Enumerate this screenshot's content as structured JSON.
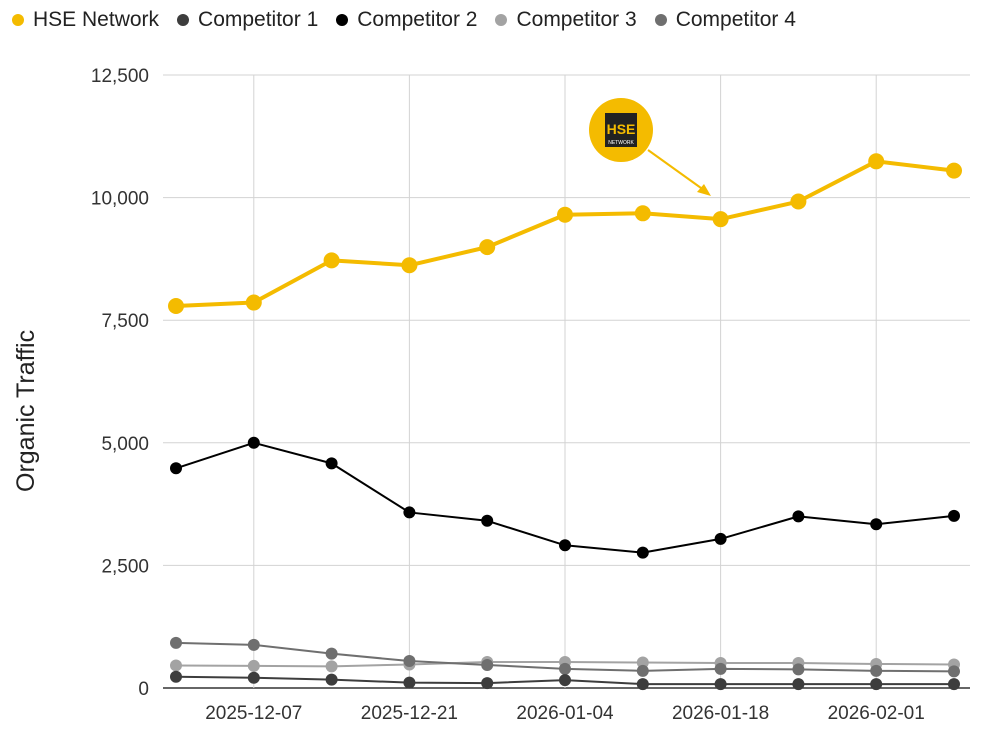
{
  "chart_data": {
    "type": "line",
    "title": "",
    "xlabel": "",
    "ylabel": "Organic Traffic",
    "ylim": [
      0,
      12500
    ],
    "yticks": [
      0,
      2500,
      5000,
      7500,
      10000,
      12500
    ],
    "ytick_labels": [
      "0",
      "2,500",
      "5,000",
      "7,500",
      "10,000",
      "12,500"
    ],
    "x": [
      "2025-11-30",
      "2025-12-07",
      "2025-12-14",
      "2025-12-21",
      "2025-12-28",
      "2026-01-04",
      "2026-01-11",
      "2026-01-18",
      "2026-01-25",
      "2026-02-01",
      "2026-02-08"
    ],
    "xtick_labels": [
      "2025-12-07",
      "2025-12-21",
      "2026-01-04",
      "2026-01-18",
      "2026-02-01"
    ],
    "grid": true,
    "legend_position": "top-left",
    "series": [
      {
        "name": "Competitor 3",
        "color": "#a3a3a3",
        "values": [
          460,
          450,
          440,
          480,
          530,
          530,
          520,
          510,
          510,
          490,
          480
        ]
      },
      {
        "name": "Competitor 4",
        "color": "#6f6f6f",
        "values": [
          920,
          880,
          700,
          550,
          470,
          390,
          350,
          390,
          380,
          350,
          340
        ]
      },
      {
        "name": "Competitor 1",
        "color": "#3d3d3d",
        "values": [
          230,
          210,
          170,
          110,
          100,
          160,
          80,
          80,
          80,
          80,
          80
        ]
      },
      {
        "name": "Competitor 2",
        "color": "#000000",
        "values": [
          4480,
          5000,
          4580,
          3580,
          3410,
          2910,
          2760,
          3040,
          3500,
          3340,
          3510
        ]
      },
      {
        "name": "HSE Network",
        "color": "#f4bb00",
        "values": [
          7790,
          7860,
          8720,
          8620,
          8990,
          9650,
          9680,
          9560,
          9920,
          10740,
          10550
        ]
      }
    ],
    "legend": [
      {
        "name": "HSE Network",
        "color": "#f4bb00"
      },
      {
        "name": "Competitor 1",
        "color": "#3d3d3d"
      },
      {
        "name": "Competitor 2",
        "color": "#000000"
      },
      {
        "name": "Competitor 3",
        "color": "#a3a3a3"
      },
      {
        "name": "Competitor 4",
        "color": "#6f6f6f"
      }
    ],
    "annotation": {
      "logo_text": "HSE",
      "logo_subtext": "NETWORK",
      "points_to": "2026-01-18"
    }
  }
}
